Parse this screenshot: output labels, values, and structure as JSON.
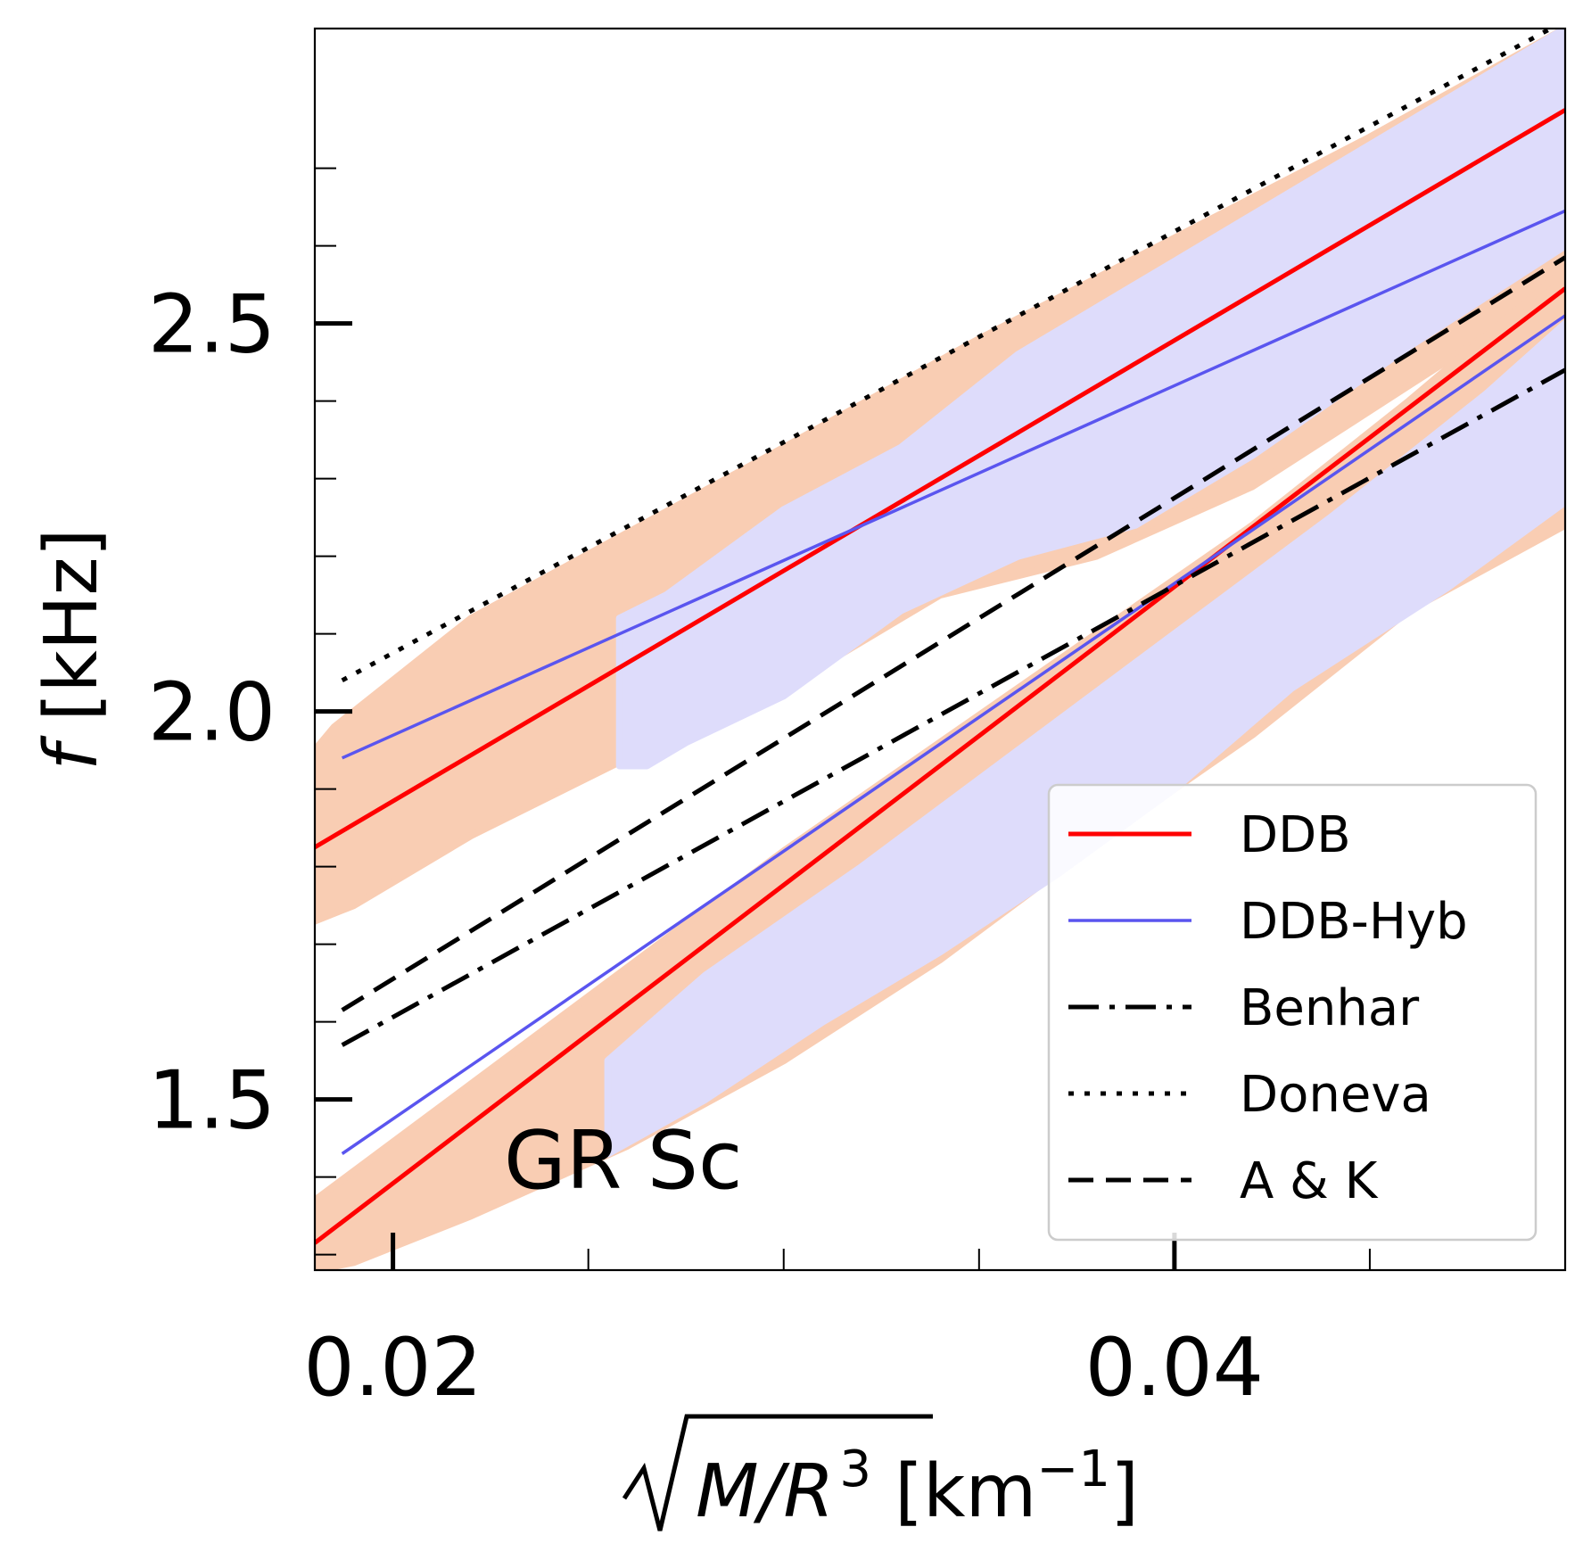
{
  "chart_data": {
    "type": "scatter",
    "title": "",
    "annotation": "GR Sc",
    "xlabel": {
      "radical": "M/R",
      "exponent": "3",
      "unit_open": " [km",
      "unit_exp": "−1",
      "unit_close": "]"
    },
    "ylabel": {
      "var": "f",
      "unit": " [kHz]"
    },
    "xlim": [
      0.018,
      0.05
    ],
    "ylim": [
      1.28,
      2.88
    ],
    "x_ticks": [
      {
        "value": 0.02,
        "label": "0.02"
      },
      {
        "value": 0.04,
        "label": "0.04"
      }
    ],
    "x_minor_ticks": [
      0.025,
      0.03,
      0.035,
      0.045,
      0.05
    ],
    "y_ticks": [
      {
        "value": 1.5,
        "label": "1.5"
      },
      {
        "value": 2.0,
        "label": "2.0"
      },
      {
        "value": 2.5,
        "label": "2.5"
      }
    ],
    "y_minor_ticks": [
      1.3,
      1.4,
      1.6,
      1.7,
      1.8,
      1.9,
      2.1,
      2.2,
      2.3,
      2.4,
      2.6,
      2.7
    ],
    "legend_position": "lower-right",
    "scatter_bands": [
      {
        "name": "DDB samples",
        "color": "#f9cdb3",
        "upper": [
          [
            0.018,
            1.95
          ],
          [
            0.0185,
            1.98
          ],
          [
            0.019,
            2.0
          ],
          [
            0.022,
            2.12
          ],
          [
            0.026,
            2.23
          ],
          [
            0.03,
            2.34
          ],
          [
            0.035,
            2.48
          ],
          [
            0.04,
            2.61
          ],
          [
            0.045,
            2.74
          ],
          [
            0.05,
            2.88
          ]
        ],
        "lower": [
          [
            0.05,
            2.55
          ],
          [
            0.046,
            2.42
          ],
          [
            0.042,
            2.29
          ],
          [
            0.038,
            2.2
          ],
          [
            0.034,
            2.15
          ],
          [
            0.03,
            2.03
          ],
          [
            0.026,
            1.94
          ],
          [
            0.022,
            1.84
          ],
          [
            0.019,
            1.75
          ],
          [
            0.018,
            1.73
          ]
        ]
      },
      {
        "name": "DDB samples",
        "color": "#f9cdb3",
        "upper": [
          [
            0.018,
            1.37
          ],
          [
            0.022,
            1.52
          ],
          [
            0.026,
            1.67
          ],
          [
            0.03,
            1.82
          ],
          [
            0.034,
            1.96
          ],
          [
            0.038,
            2.1
          ],
          [
            0.042,
            2.24
          ],
          [
            0.046,
            2.4
          ],
          [
            0.05,
            2.57
          ]
        ],
        "lower": [
          [
            0.05,
            2.24
          ],
          [
            0.046,
            2.13
          ],
          [
            0.042,
            1.97
          ],
          [
            0.038,
            1.83
          ],
          [
            0.034,
            1.68
          ],
          [
            0.03,
            1.55
          ],
          [
            0.026,
            1.44
          ],
          [
            0.022,
            1.35
          ],
          [
            0.019,
            1.29
          ],
          [
            0.018,
            1.28
          ]
        ]
      },
      {
        "name": "DDB-Hyb samples",
        "color": "#dedcfb",
        "upper": [
          [
            0.0258,
            2.12
          ],
          [
            0.027,
            2.15
          ],
          [
            0.03,
            2.26
          ],
          [
            0.033,
            2.34
          ],
          [
            0.036,
            2.46
          ],
          [
            0.04,
            2.58
          ],
          [
            0.045,
            2.73
          ],
          [
            0.05,
            2.88
          ]
        ],
        "lower": [
          [
            0.05,
            2.6
          ],
          [
            0.046,
            2.47
          ],
          [
            0.042,
            2.33
          ],
          [
            0.039,
            2.24
          ],
          [
            0.036,
            2.2
          ],
          [
            0.033,
            2.13
          ],
          [
            0.03,
            2.02
          ],
          [
            0.0275,
            1.96
          ],
          [
            0.0265,
            1.93
          ],
          [
            0.0258,
            1.93
          ]
        ]
      },
      {
        "name": "DDB-Hyb samples",
        "color": "#dedcfb",
        "upper": [
          [
            0.0255,
            1.55
          ],
          [
            0.028,
            1.66
          ],
          [
            0.032,
            1.8
          ],
          [
            0.036,
            1.95
          ],
          [
            0.04,
            2.1
          ],
          [
            0.044,
            2.25
          ],
          [
            0.048,
            2.41
          ],
          [
            0.05,
            2.5
          ]
        ],
        "lower": [
          [
            0.05,
            2.27
          ],
          [
            0.047,
            2.16
          ],
          [
            0.043,
            2.03
          ],
          [
            0.04,
            1.9
          ],
          [
            0.037,
            1.79
          ],
          [
            0.034,
            1.69
          ],
          [
            0.031,
            1.6
          ],
          [
            0.028,
            1.5
          ],
          [
            0.0255,
            1.43
          ]
        ]
      }
    ],
    "series": [
      {
        "name": "DDB",
        "color": "#ff0000",
        "style": "solid",
        "width": 5,
        "segments": [
          {
            "x": [
              0.018,
              0.05
            ],
            "y": [
              1.825,
              2.775
            ]
          },
          {
            "x": [
              0.018,
              0.05
            ],
            "y": [
              1.315,
              2.545
            ]
          }
        ]
      },
      {
        "name": "DDB-Hyb",
        "color": "#5a55ef",
        "style": "solid",
        "width": 3.5,
        "segments": [
          {
            "x": [
              0.0187,
              0.05
            ],
            "y": [
              1.94,
              2.645
            ]
          },
          {
            "x": [
              0.0187,
              0.05
            ],
            "y": [
              1.43,
              2.51
            ]
          }
        ]
      },
      {
        "name": "Benhar",
        "color": "#000000",
        "style": "dashdot",
        "width": 5,
        "segments": [
          {
            "x": [
              0.0187,
              0.05
            ],
            "y": [
              1.57,
              2.44
            ]
          }
        ]
      },
      {
        "name": "Doneva",
        "color": "#000000",
        "style": "dotted",
        "width": 5,
        "segments": [
          {
            "x": [
              0.0187,
              0.05
            ],
            "y": [
              2.04,
              2.89
            ]
          }
        ]
      },
      {
        "name": "A & K",
        "color": "#000000",
        "style": "dashed",
        "width": 5,
        "segments": [
          {
            "x": [
              0.0187,
              0.05
            ],
            "y": [
              1.615,
              2.585
            ]
          }
        ]
      }
    ]
  }
}
